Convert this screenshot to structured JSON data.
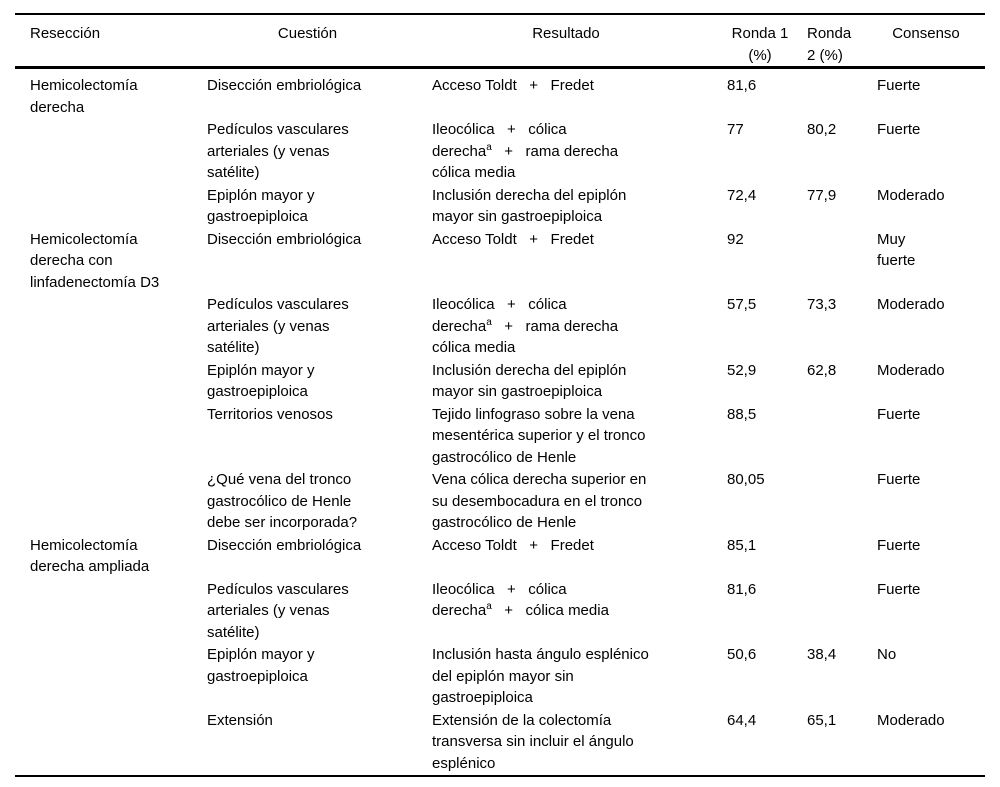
{
  "page": {
    "background_color": "#ffffff",
    "text_color": "#000000"
  },
  "table": {
    "header": {
      "reseccion": "Resección",
      "cuestion": "Cuestión",
      "resultado": "Resultado",
      "ronda1": [
        "Ronda 1",
        "(%)"
      ],
      "ronda2": [
        "Ronda",
        "2 (%)"
      ],
      "consenso": "Consenso"
    },
    "rows": [
      {
        "reseccion": [
          "Hemicolectomía",
          "derecha"
        ],
        "cuestion": [
          "Disección embriológica"
        ],
        "resultado": [
          "Acceso Toldt   +   Fredet"
        ],
        "ronda1": "81,6",
        "ronda2": "",
        "consenso": [
          "Fuerte"
        ]
      },
      {
        "reseccion": "",
        "cuestion": [
          "Pedículos vasculares",
          "arteriales (y venas",
          "satélite)"
        ],
        "resultado": [
          "Ileocólica   +   cólica",
          "derecha^a   +   rama derecha",
          "cólica media"
        ],
        "ronda1": "77",
        "ronda2": "80,2",
        "consenso": [
          "Fuerte"
        ]
      },
      {
        "reseccion": "",
        "cuestion": [
          "Epiplón mayor y",
          "gastroepiploica"
        ],
        "resultado": [
          "Inclusión derecha del epiplón",
          "mayor sin gastroepiploica"
        ],
        "ronda1": "72,4",
        "ronda2": "77,9",
        "consenso": [
          "Moderado"
        ]
      },
      {
        "reseccion": [
          "Hemicolectomía",
          "derecha con",
          "linfadenectomía D3"
        ],
        "cuestion": [
          "Disección embriológica"
        ],
        "resultado": [
          "Acceso Toldt   +   Fredet"
        ],
        "ronda1": "92",
        "ronda2": "",
        "consenso": [
          "Muy",
          "fuerte"
        ]
      },
      {
        "reseccion": "",
        "cuestion": [
          "Pedículos vasculares",
          "arteriales (y venas",
          "satélite)"
        ],
        "resultado": [
          "Ileocólica   +   cólica",
          "derecha^a   +   rama derecha",
          "cólica media"
        ],
        "ronda1": "57,5",
        "ronda2": "73,3",
        "consenso": [
          "Moderado"
        ]
      },
      {
        "reseccion": "",
        "cuestion": [
          "Epiplón mayor y",
          "gastroepiploica"
        ],
        "resultado": [
          "Inclusión derecha del epiplón",
          "mayor sin gastroepiploica"
        ],
        "ronda1": "52,9",
        "ronda2": "62,8",
        "consenso": [
          "Moderado"
        ]
      },
      {
        "reseccion": "",
        "cuestion": [
          "Territorios venosos"
        ],
        "resultado": [
          "Tejido linfograso sobre la vena",
          "mesentérica superior y el tronco",
          "gastrocólico de Henle"
        ],
        "ronda1": "88,5",
        "ronda2": "",
        "consenso": [
          "Fuerte"
        ]
      },
      {
        "reseccion": "",
        "cuestion": [
          "¿Qué vena del tronco",
          "gastrocólico de Henle",
          "debe ser incorporada?"
        ],
        "resultado": [
          "Vena cólica derecha superior en",
          "su desembocadura en el tronco",
          "gastrocólico de Henle"
        ],
        "ronda1": "80,05",
        "ronda2": "",
        "consenso": [
          "Fuerte"
        ]
      },
      {
        "reseccion": [
          "Hemicolectomía",
          "derecha ampliada"
        ],
        "cuestion": [
          "Disección embriológica"
        ],
        "resultado": [
          "Acceso Toldt   +   Fredet"
        ],
        "ronda1": "85,1",
        "ronda2": "",
        "consenso": [
          "Fuerte"
        ]
      },
      {
        "reseccion": "",
        "cuestion": [
          "Pedículos vasculares",
          "arteriales (y venas",
          "satélite)"
        ],
        "resultado": [
          "Ileocólica   +   cólica",
          "derecha^a   +   cólica media"
        ],
        "ronda1": "81,6",
        "ronda2": "",
        "consenso": [
          "Fuerte"
        ]
      },
      {
        "reseccion": "",
        "cuestion": [
          "Epiplón mayor y",
          "gastroepiploica"
        ],
        "resultado": [
          "Inclusión hasta ángulo esplénico",
          "del epiplón mayor sin",
          "gastroepiploica"
        ],
        "ronda1": "50,6",
        "ronda2": "38,4",
        "consenso": [
          "No"
        ]
      },
      {
        "reseccion": "",
        "cuestion": [
          "Extensión"
        ],
        "resultado": [
          "Extensión de la colectomía",
          "transversa sin incluir el ángulo",
          "esplénico"
        ],
        "ronda1": "64,4",
        "ronda2": "65,1",
        "consenso": [
          "Moderado"
        ]
      }
    ]
  }
}
